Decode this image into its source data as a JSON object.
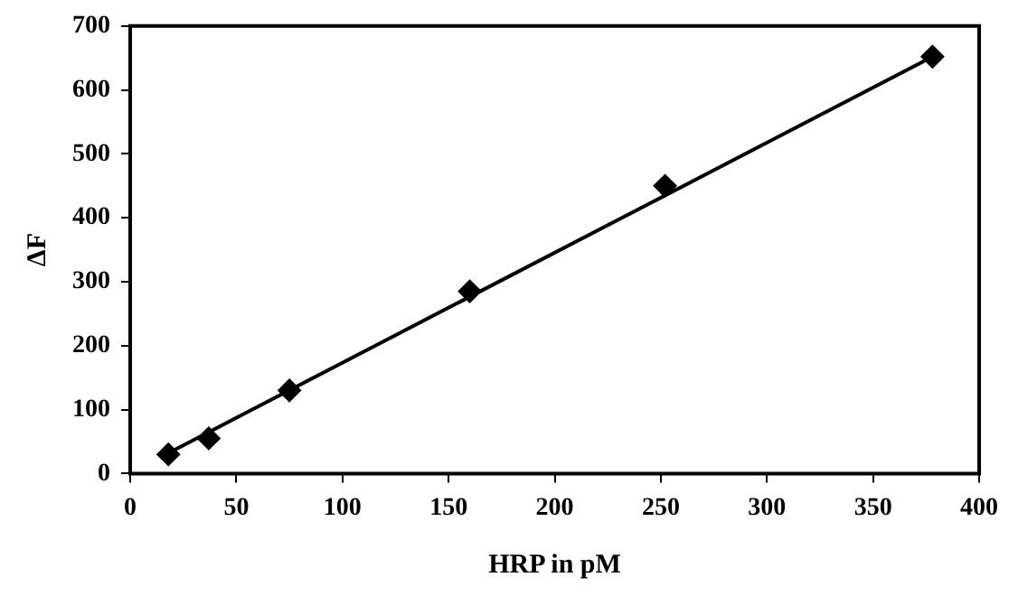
{
  "chart_data": {
    "type": "scatter",
    "xlabel": "HRP in pM",
    "ylabel": "ΔF",
    "xlim": [
      0,
      400
    ],
    "xticks": [
      0,
      50,
      100,
      150,
      200,
      250,
      300,
      350,
      400
    ],
    "ylim": [
      0,
      700
    ],
    "yticks": [
      0,
      100,
      200,
      300,
      400,
      500,
      600,
      700
    ],
    "grid": false,
    "legend": false,
    "marker": "diamond",
    "series": [
      {
        "color": "#000000",
        "x": [
          18,
          37,
          75,
          160,
          252,
          378
        ],
        "values": [
          30,
          55,
          130,
          285,
          450,
          652
        ]
      },
      {
        "type": "line",
        "color": "#000000",
        "marker": "none",
        "line_style": "solid",
        "x": [
          18,
          378
        ],
        "values": [
          32,
          652
        ]
      }
    ]
  }
}
